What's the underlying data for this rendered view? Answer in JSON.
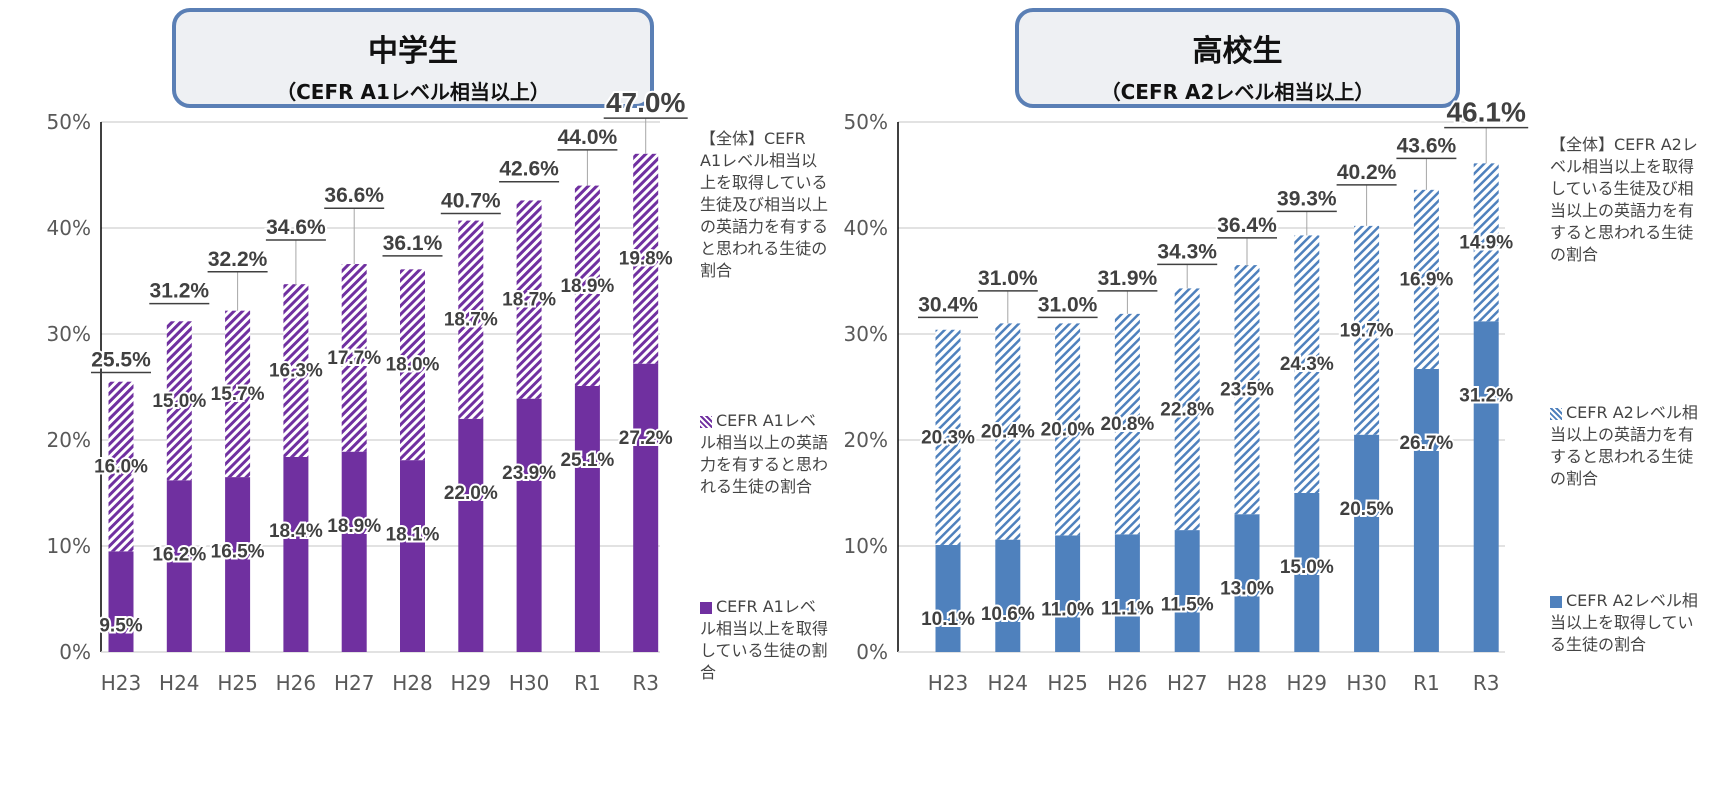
{
  "chart_data": [
    {
      "type": "bar",
      "stacked": true,
      "title": "中学生",
      "subtitle": "（CEFR A1レベル相当以上）",
      "categories": [
        "H23",
        "H24",
        "H25",
        "H26",
        "H27",
        "H28",
        "H29",
        "H30",
        "R1",
        "R3"
      ],
      "ylim": [
        0,
        50
      ],
      "yticks": [
        "0%",
        "10%",
        "20%",
        "30%",
        "40%",
        "50%"
      ],
      "grid": true,
      "legend": "right",
      "series": [
        {
          "name": "CEFR A1レベル相当以上を取得している生徒の割合",
          "color": "#7030a0",
          "fill": "solid",
          "values": [
            9.5,
            16.2,
            16.5,
            18.4,
            18.9,
            18.1,
            22.0,
            23.9,
            25.1,
            27.2
          ]
        },
        {
          "name": "CEFR A1レベル相当以上の英語力を有すると思われる生徒の割合",
          "color": "#7030a0",
          "fill": "hatched",
          "values": [
            16.0,
            15.0,
            15.7,
            16.3,
            17.7,
            18.0,
            18.7,
            18.7,
            18.9,
            19.8
          ]
        }
      ],
      "totals": [
        25.5,
        31.2,
        32.2,
        34.6,
        36.6,
        36.1,
        40.7,
        42.6,
        44.0,
        47.0
      ],
      "totals_legend": "【全体】CEFR A1レベル相当以上を取得している生徒及び相当以上の英語力を有すると思われる生徒の割合"
    },
    {
      "type": "bar",
      "stacked": true,
      "title": "高校生",
      "subtitle": "（CEFR A2レベル相当以上）",
      "categories": [
        "H23",
        "H24",
        "H25",
        "H26",
        "H27",
        "H28",
        "H29",
        "H30",
        "R1",
        "R3"
      ],
      "ylim": [
        0,
        50
      ],
      "yticks": [
        "0%",
        "10%",
        "20%",
        "30%",
        "40%",
        "50%"
      ],
      "grid": true,
      "legend": "right",
      "series": [
        {
          "name": "CEFR A2レベル相当以上を取得している生徒の割合",
          "color": "#4f81bd",
          "fill": "solid",
          "values": [
            10.1,
            10.6,
            11.0,
            11.1,
            11.5,
            13.0,
            15.0,
            20.5,
            26.7,
            31.2
          ]
        },
        {
          "name": "CEFR A2レベル相当以上の英語力を有すると思われる生徒の割合",
          "color": "#4f81bd",
          "fill": "hatched",
          "values": [
            20.3,
            20.4,
            20.0,
            20.8,
            22.8,
            23.5,
            24.3,
            19.7,
            16.9,
            14.9
          ]
        }
      ],
      "totals": [
        30.4,
        31.0,
        31.0,
        31.9,
        34.3,
        36.4,
        39.3,
        40.2,
        43.6,
        46.1
      ],
      "totals_legend": "【全体】CEFR A2レベル相当以上を取得している生徒及び相当以上の英語力を有すると思われる生徒の割合"
    }
  ]
}
